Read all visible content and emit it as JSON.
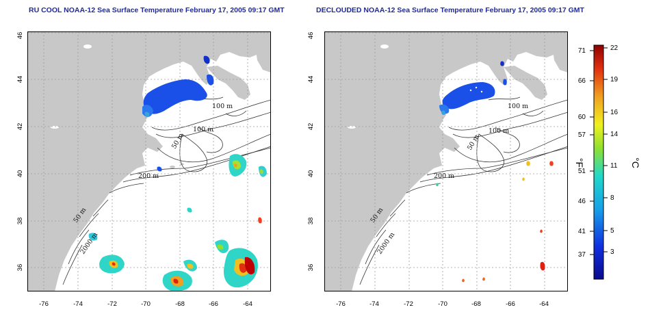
{
  "left_title": "RU COOL NOAA-12 Sea Surface Temperature February 17, 2005 09:17 GMT",
  "right_title": "DECLOUDED NOAA-12 Sea Surface Temperature February 17, 2005 09:17 GMT",
  "lat_ticks": [
    "46",
    "44",
    "42",
    "40",
    "38",
    "36"
  ],
  "lon_ticks": [
    "-76",
    "-74",
    "-72",
    "-70",
    "-68",
    "-66",
    "-64"
  ],
  "contour_labels": {
    "left": [
      "100 m",
      "100 m",
      "50 m",
      "200 m",
      "50 m",
      "2000 m"
    ],
    "right": [
      "100 m",
      "100 m",
      "50 m",
      "200 m",
      "50 m",
      "2000 m"
    ]
  },
  "colorbar": {
    "fahrenheit_unit": "°F",
    "celsius_unit": "°C",
    "fahrenheit_ticks": [
      "71",
      "66",
      "60",
      "57",
      "51",
      "46",
      "41",
      "37"
    ],
    "celsius_ticks": [
      "22",
      "19",
      "16",
      "14",
      "11",
      "8",
      "5",
      "3"
    ],
    "colors": [
      "#0a0a8c",
      "#1030e0",
      "#18a0e8",
      "#20d8c8",
      "#90e030",
      "#f0f020",
      "#f0a020",
      "#e03010",
      "#900000"
    ]
  },
  "colors": {
    "land": "#c8c8c8",
    "title": "#1f2a9c"
  }
}
